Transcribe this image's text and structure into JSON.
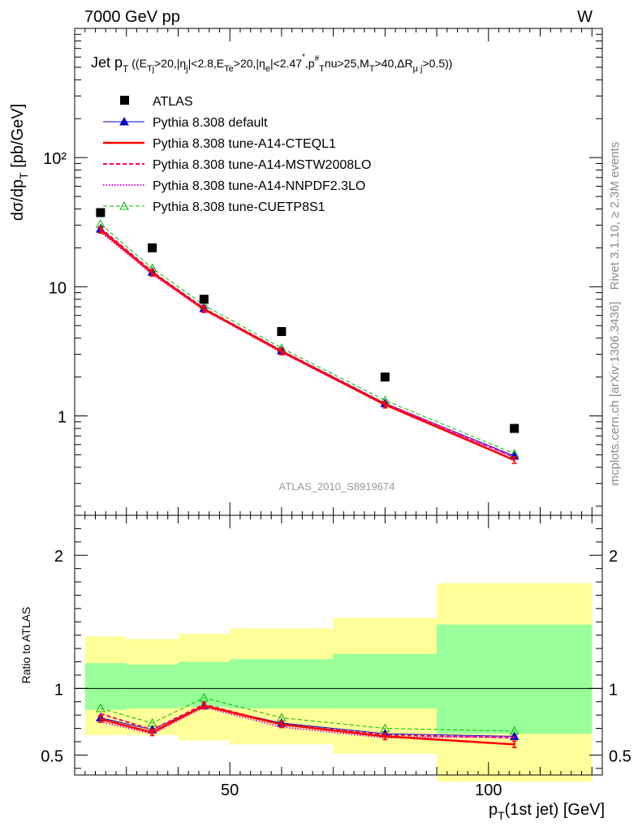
{
  "header": {
    "left": "7000 GeV pp",
    "right": "W"
  },
  "side_text": {
    "rivet": "Rivet 3.1.10, ≥ 2.3M events",
    "mcplots": "mcplots.cern.ch [arXiv:1306.3436]"
  },
  "chart_data": [
    {
      "type": "line",
      "name": "main",
      "title": "Jet p_T ((E_Tj>20,|η_j|<2.8,E_Te>20,|η_e|<2.47*,p_T#nu>25,M_T>40,ΔR_μj>0.5))",
      "watermark": "ATLAS_2010_S8919674",
      "ylabel": "dσ/dp_T [pb/GeV]",
      "y_scale": "log",
      "ylim": [
        0.17,
        1000
      ],
      "xlim": [
        20,
        122
      ],
      "y_ticks": [
        "10²",
        "10",
        "1"
      ],
      "x": [
        25,
        35,
        45,
        60,
        80,
        105
      ],
      "series": [
        {
          "name": "ATLAS",
          "color": "#000000",
          "marker": "square",
          "values": [
            37.5,
            20,
            8,
            4.5,
            2,
            0.8
          ]
        },
        {
          "name": "Pythia 8.308 default",
          "color": "#0000cc",
          "marker": "triangle",
          "values": [
            28,
            13,
            6.8,
            3.2,
            1.25,
            0.49
          ]
        },
        {
          "name": "Pythia 8.308 tune-A14-CTEQL1",
          "color": "#ff0000",
          "marker": "errbar",
          "values": [
            27.5,
            12.8,
            6.7,
            3.15,
            1.22,
            0.455
          ]
        },
        {
          "name": "Pythia 8.308 tune-A14-MSTW2008LO",
          "color": "#ff0066",
          "marker": "none",
          "values": [
            28.5,
            13.1,
            6.8,
            3.2,
            1.25,
            0.48
          ]
        },
        {
          "name": "Pythia 8.308 tune-A14-NNPDF2.3LO",
          "color": "#e000e0",
          "marker": "none",
          "values": [
            26.5,
            12.5,
            6.6,
            3.1,
            1.22,
            0.48
          ]
        },
        {
          "name": "Pythia 8.308 tune-CUETP8S1",
          "color": "#00bb00",
          "marker": "open-triangle",
          "values": [
            30.5,
            13.9,
            7.2,
            3.35,
            1.32,
            0.51
          ]
        }
      ]
    },
    {
      "type": "line",
      "name": "ratio",
      "ylabel": "Ratio to ATLAS",
      "ylim": [
        0.35,
        2.3
      ],
      "xlim": [
        20,
        122
      ],
      "y_ticks": [
        0.5,
        1,
        2
      ],
      "x_ticks": [
        50,
        100
      ],
      "xlabel": "p_T(1st jet) [GeV]",
      "bins": [
        {
          "x0": 22,
          "x1": 30,
          "inner": [
            0.84,
            1.19
          ],
          "outer": [
            0.65,
            1.39
          ]
        },
        {
          "x0": 30,
          "x1": 40,
          "inner": [
            0.85,
            1.18
          ],
          "outer": [
            0.65,
            1.37
          ]
        },
        {
          "x0": 40,
          "x1": 50,
          "inner": [
            0.86,
            1.2
          ],
          "outer": [
            0.61,
            1.41
          ]
        },
        {
          "x0": 50,
          "x1": 70,
          "inner": [
            0.85,
            1.22
          ],
          "outer": [
            0.58,
            1.45
          ]
        },
        {
          "x0": 70,
          "x1": 90,
          "inner": [
            0.85,
            1.26
          ],
          "outer": [
            0.51,
            1.53
          ]
        },
        {
          "x0": 90,
          "x1": 120,
          "inner": [
            0.66,
            1.48
          ],
          "outer": [
            0.3,
            1.79
          ]
        }
      ],
      "series": [
        {
          "name": "Pythia 8.308 default",
          "values": [
            0.78,
            0.69,
            0.87,
            0.74,
            0.66,
            0.64
          ]
        },
        {
          "name": "Pythia 8.308 tune-A14-CTEQL1",
          "values": [
            0.77,
            0.67,
            0.87,
            0.73,
            0.64,
            0.58
          ]
        },
        {
          "name": "Pythia 8.308 tune-A14-MSTW2008LO",
          "values": [
            0.81,
            0.69,
            0.88,
            0.73,
            0.65,
            0.63
          ]
        },
        {
          "name": "Pythia 8.308 tune-A14-NNPDF2.3LO",
          "values": [
            0.75,
            0.66,
            0.86,
            0.71,
            0.63,
            0.64
          ]
        },
        {
          "name": "Pythia 8.308 tune-CUETP8S1",
          "values": [
            0.85,
            0.74,
            0.93,
            0.78,
            0.7,
            0.68
          ]
        }
      ]
    }
  ]
}
